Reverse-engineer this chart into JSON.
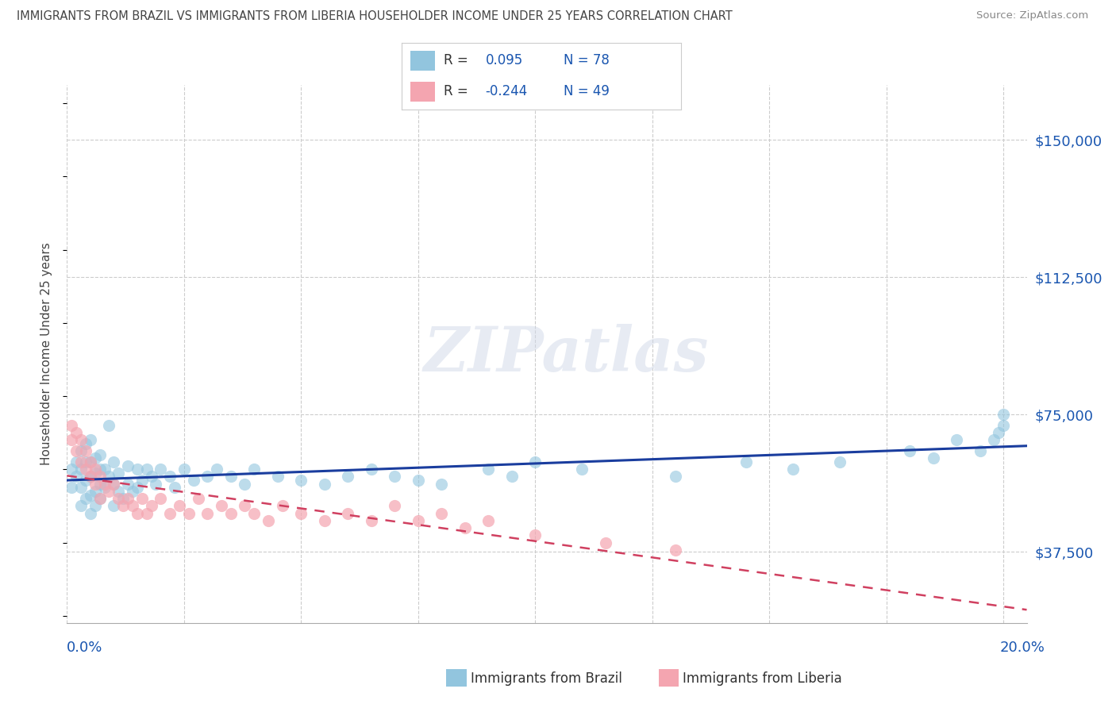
{
  "title": "IMMIGRANTS FROM BRAZIL VS IMMIGRANTS FROM LIBERIA HOUSEHOLDER INCOME UNDER 25 YEARS CORRELATION CHART",
  "source": "Source: ZipAtlas.com",
  "ylabel": "Householder Income Under 25 years",
  "yticks": [
    37500,
    75000,
    112500,
    150000
  ],
  "ytick_labels": [
    "$37,500",
    "$75,000",
    "$112,500",
    "$150,000"
  ],
  "xlim": [
    0.0,
    0.205
  ],
  "ylim": [
    18000,
    165000
  ],
  "brazil_R": 0.095,
  "brazil_N": 78,
  "liberia_R": -0.244,
  "liberia_N": 49,
  "brazil_color": "#92c5de",
  "liberia_color": "#f4a5b0",
  "brazil_line_color": "#1a3d9e",
  "liberia_line_color": "#d04060",
  "watermark": "ZIPatlas",
  "background_color": "#ffffff",
  "grid_color": "#cccccc",
  "brazil_x": [
    0.001,
    0.001,
    0.002,
    0.002,
    0.003,
    0.003,
    0.003,
    0.003,
    0.004,
    0.004,
    0.004,
    0.004,
    0.005,
    0.005,
    0.005,
    0.005,
    0.005,
    0.006,
    0.006,
    0.006,
    0.006,
    0.007,
    0.007,
    0.007,
    0.007,
    0.008,
    0.008,
    0.009,
    0.009,
    0.01,
    0.01,
    0.01,
    0.011,
    0.011,
    0.012,
    0.013,
    0.013,
    0.014,
    0.015,
    0.015,
    0.016,
    0.017,
    0.018,
    0.019,
    0.02,
    0.022,
    0.023,
    0.025,
    0.027,
    0.03,
    0.032,
    0.035,
    0.038,
    0.04,
    0.045,
    0.05,
    0.055,
    0.06,
    0.065,
    0.07,
    0.075,
    0.08,
    0.09,
    0.095,
    0.1,
    0.11,
    0.13,
    0.145,
    0.155,
    0.165,
    0.18,
    0.185,
    0.19,
    0.195,
    0.198,
    0.199,
    0.2,
    0.2
  ],
  "brazil_y": [
    60000,
    55000,
    58000,
    62000,
    50000,
    55000,
    60000,
    65000,
    52000,
    57000,
    62000,
    67000,
    48000,
    53000,
    58000,
    62000,
    68000,
    50000,
    54000,
    59000,
    63000,
    52000,
    56000,
    60000,
    64000,
    55000,
    60000,
    58000,
    72000,
    50000,
    56000,
    62000,
    54000,
    59000,
    52000,
    56000,
    61000,
    54000,
    55000,
    60000,
    57000,
    60000,
    58000,
    56000,
    60000,
    58000,
    55000,
    60000,
    57000,
    58000,
    60000,
    58000,
    56000,
    60000,
    58000,
    57000,
    56000,
    58000,
    60000,
    58000,
    57000,
    56000,
    60000,
    58000,
    62000,
    60000,
    58000,
    62000,
    60000,
    62000,
    65000,
    63000,
    68000,
    65000,
    68000,
    70000,
    72000,
    75000
  ],
  "liberia_x": [
    0.001,
    0.001,
    0.002,
    0.002,
    0.003,
    0.003,
    0.004,
    0.004,
    0.005,
    0.005,
    0.006,
    0.006,
    0.007,
    0.007,
    0.008,
    0.009,
    0.01,
    0.011,
    0.012,
    0.013,
    0.014,
    0.015,
    0.016,
    0.017,
    0.018,
    0.02,
    0.022,
    0.024,
    0.026,
    0.028,
    0.03,
    0.033,
    0.035,
    0.038,
    0.04,
    0.043,
    0.046,
    0.05,
    0.055,
    0.06,
    0.065,
    0.07,
    0.075,
    0.08,
    0.085,
    0.09,
    0.1,
    0.115,
    0.13
  ],
  "liberia_y": [
    72000,
    68000,
    65000,
    70000,
    62000,
    68000,
    60000,
    65000,
    58000,
    62000,
    56000,
    60000,
    52000,
    58000,
    56000,
    54000,
    56000,
    52000,
    50000,
    52000,
    50000,
    48000,
    52000,
    48000,
    50000,
    52000,
    48000,
    50000,
    48000,
    52000,
    48000,
    50000,
    48000,
    50000,
    48000,
    46000,
    50000,
    48000,
    46000,
    48000,
    46000,
    50000,
    46000,
    48000,
    44000,
    46000,
    42000,
    40000,
    38000
  ]
}
